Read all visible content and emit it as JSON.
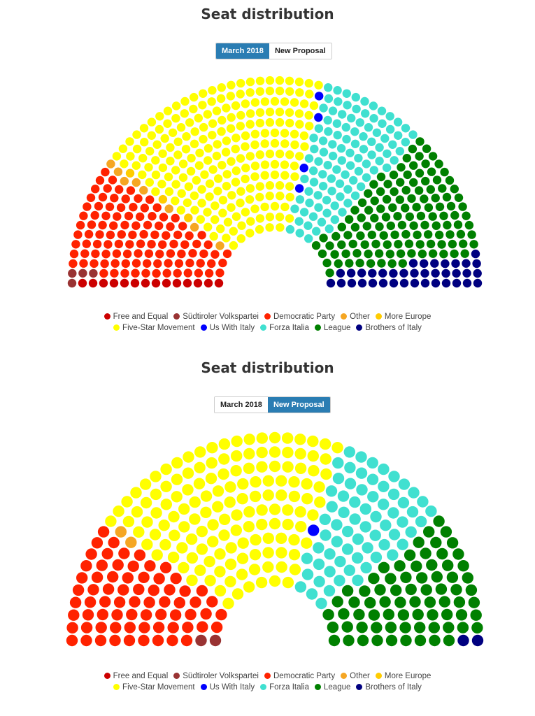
{
  "chart_data": [
    {
      "type": "parliament",
      "title": "Seat distribution",
      "toggle": [
        {
          "label": "March 2018",
          "active": true
        },
        {
          "label": "New Proposal",
          "active": false
        }
      ],
      "series": [
        {
          "name": "Free and Equal",
          "color": "#cc0000",
          "value": 14
        },
        {
          "name": "Südtiroler Volkspartei",
          "color": "#993333",
          "value": 4
        },
        {
          "name": "Democratic Party",
          "color": "#ff2200",
          "value": 106
        },
        {
          "name": "Other",
          "color": "#f5a623",
          "value": 8
        },
        {
          "name": "More Europe",
          "color": "#ffcc00",
          "value": 3
        },
        {
          "name": "Five-Star Movement",
          "color": "#ffff00",
          "value": 225
        },
        {
          "name": "Us With Italy",
          "color": "#0000ff",
          "value": 4
        },
        {
          "name": "Forza Italia",
          "color": "#40e0d0",
          "value": 104
        },
        {
          "name": "League",
          "color": "#008000",
          "value": 125
        },
        {
          "name": "Brothers of Italy",
          "color": "#000080",
          "value": 37
        }
      ],
      "legend_rows": [
        [
          "Free and Equal",
          "Südtiroler Volkspartei",
          "Democratic Party",
          "Other",
          "More Europe"
        ],
        [
          "Five-Star Movement",
          "Us With Italy",
          "Forza Italia",
          "League",
          "Brothers of Italy"
        ]
      ]
    },
    {
      "type": "parliament",
      "title": "Seat distribution",
      "toggle": [
        {
          "label": "March 2018",
          "active": false
        },
        {
          "label": "New Proposal",
          "active": true
        }
      ],
      "series": [
        {
          "name": "Free and Equal",
          "color": "#cc0000",
          "value": 0
        },
        {
          "name": "Südtiroler Volkspartei",
          "color": "#993333",
          "value": 2
        },
        {
          "name": "Democratic Party",
          "color": "#ff2200",
          "value": 70
        },
        {
          "name": "Other",
          "color": "#f5a623",
          "value": 2
        },
        {
          "name": "More Europe",
          "color": "#ffcc00",
          "value": 0
        },
        {
          "name": "Five-Star Movement",
          "color": "#ffff00",
          "value": 143
        },
        {
          "name": "Us With Italy",
          "color": "#0000ff",
          "value": 1
        },
        {
          "name": "Forza Italia",
          "color": "#40e0d0",
          "value": 67
        },
        {
          "name": "League",
          "color": "#008000",
          "value": 73
        },
        {
          "name": "Brothers of Italy",
          "color": "#000080",
          "value": 2
        }
      ],
      "legend_rows": [
        [
          "Free and Equal",
          "Südtiroler Volkspartei",
          "Democratic Party",
          "Other",
          "More Europe"
        ],
        [
          "Five-Star Movement",
          "Us With Italy",
          "Forza Italia",
          "League",
          "Brothers of Italy"
        ]
      ]
    }
  ]
}
